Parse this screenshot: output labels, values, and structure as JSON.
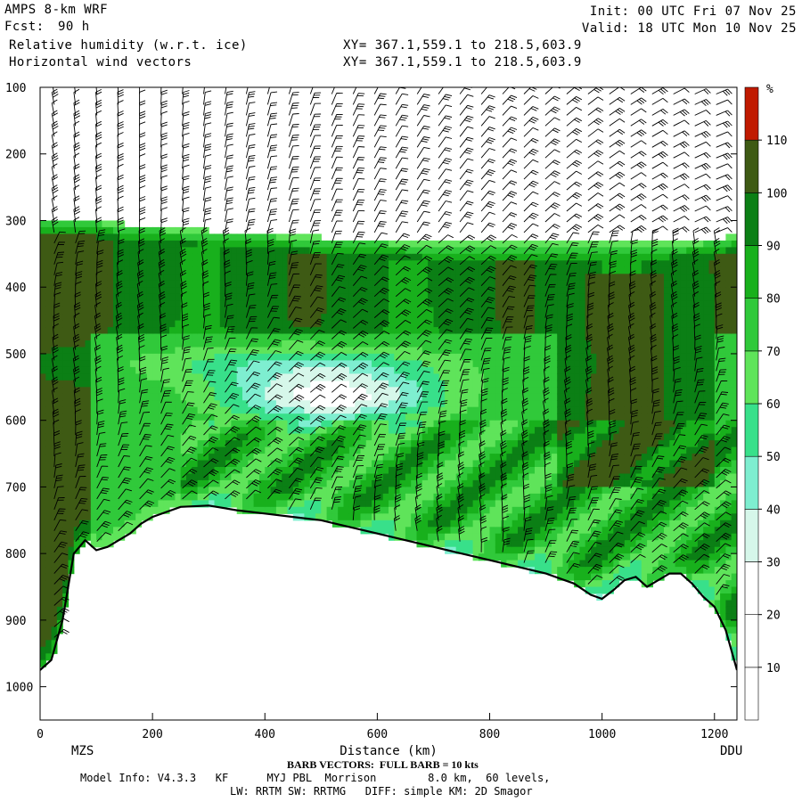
{
  "header": {
    "model": "AMPS 8-km WRF",
    "fcst_label": "Fcst:",
    "fcst_value": "90 h",
    "field1": "Relative humidity (w.r.t. ice)",
    "field2": "Horizontal wind vectors",
    "init": "Init: 00 UTC Fri 07 Nov 25",
    "valid": "Valid: 18 UTC Mon 10 Nov 25",
    "xy1": "XY= 367.1,559.1 to 218.5,603.9",
    "xy2": "XY= 367.1,559.1 to 218.5,603.9"
  },
  "footer": {
    "barb_note": "BARB VECTORS:  FULL BARB = 10 kts",
    "model_info": "Model Info: V4.3.3   KF      MYJ PBL  Morrison        8.0 km,  60 levels,",
    "physics": "LW: RRTM SW: RRTMG   DIFF: simple KM: 2D Smagor"
  },
  "chart_data": {
    "type": "heatmap",
    "title": "Relative humidity (w.r.t. ice)",
    "xlabel": "Distance (km)",
    "ylabel": "",
    "xlim": [
      0,
      1240
    ],
    "ylim": [
      1050,
      100
    ],
    "x_ticks": [
      0,
      200,
      400,
      600,
      800,
      1000,
      1200
    ],
    "y_ticks": [
      100,
      200,
      300,
      400,
      500,
      600,
      700,
      800,
      900,
      1000
    ],
    "x_endpoints": {
      "start": "MZS",
      "end": "DDU"
    },
    "colorbar": {
      "unit": "%",
      "ticks": [
        10,
        20,
        30,
        40,
        50,
        60,
        70,
        80,
        90,
        100,
        110
      ],
      "bins": [
        {
          "lo": 0,
          "hi": 10,
          "color": "#ffffff"
        },
        {
          "lo": 10,
          "hi": 20,
          "color": "#ffffff"
        },
        {
          "lo": 20,
          "hi": 30,
          "color": "#ffffff"
        },
        {
          "lo": 30,
          "hi": 40,
          "color": "#d6f7ea"
        },
        {
          "lo": 40,
          "hi": 50,
          "color": "#7eeed0"
        },
        {
          "lo": 50,
          "hi": 60,
          "color": "#38e08a"
        },
        {
          "lo": 60,
          "hi": 70,
          "color": "#5fe45a"
        },
        {
          "lo": 70,
          "hi": 80,
          "color": "#30c93a"
        },
        {
          "lo": 80,
          "hi": 90,
          "color": "#18b01c"
        },
        {
          "lo": 90,
          "hi": 100,
          "color": "#0b7f15"
        },
        {
          "lo": 100,
          "hi": 110,
          "color": "#3e5a14"
        },
        {
          "lo": 110,
          "hi": 120,
          "color": "#c01a00"
        }
      ]
    },
    "terrain_surface": {
      "x": [
        0,
        20,
        40,
        60,
        80,
        100,
        120,
        140,
        160,
        180,
        200,
        250,
        300,
        350,
        400,
        450,
        500,
        550,
        600,
        650,
        700,
        750,
        800,
        850,
        900,
        950,
        980,
        1000,
        1020,
        1040,
        1060,
        1080,
        1100,
        1120,
        1140,
        1160,
        1180,
        1200,
        1220,
        1240
      ],
      "p": [
        975,
        960,
        900,
        800,
        780,
        795,
        790,
        780,
        770,
        755,
        745,
        730,
        728,
        735,
        740,
        745,
        750,
        760,
        770,
        780,
        790,
        800,
        810,
        820,
        830,
        845,
        862,
        868,
        855,
        840,
        835,
        850,
        840,
        830,
        830,
        845,
        865,
        880,
        915,
        975
      ]
    },
    "moist_layer_top": {
      "x": [
        0,
        100,
        200,
        300,
        400,
        500,
        600,
        700,
        800,
        900,
        1000,
        1100,
        1200,
        1240
      ],
      "p": [
        320,
        325,
        335,
        340,
        345,
        350,
        355,
        360,
        360,
        360,
        360,
        360,
        355,
        345
      ]
    }
  }
}
